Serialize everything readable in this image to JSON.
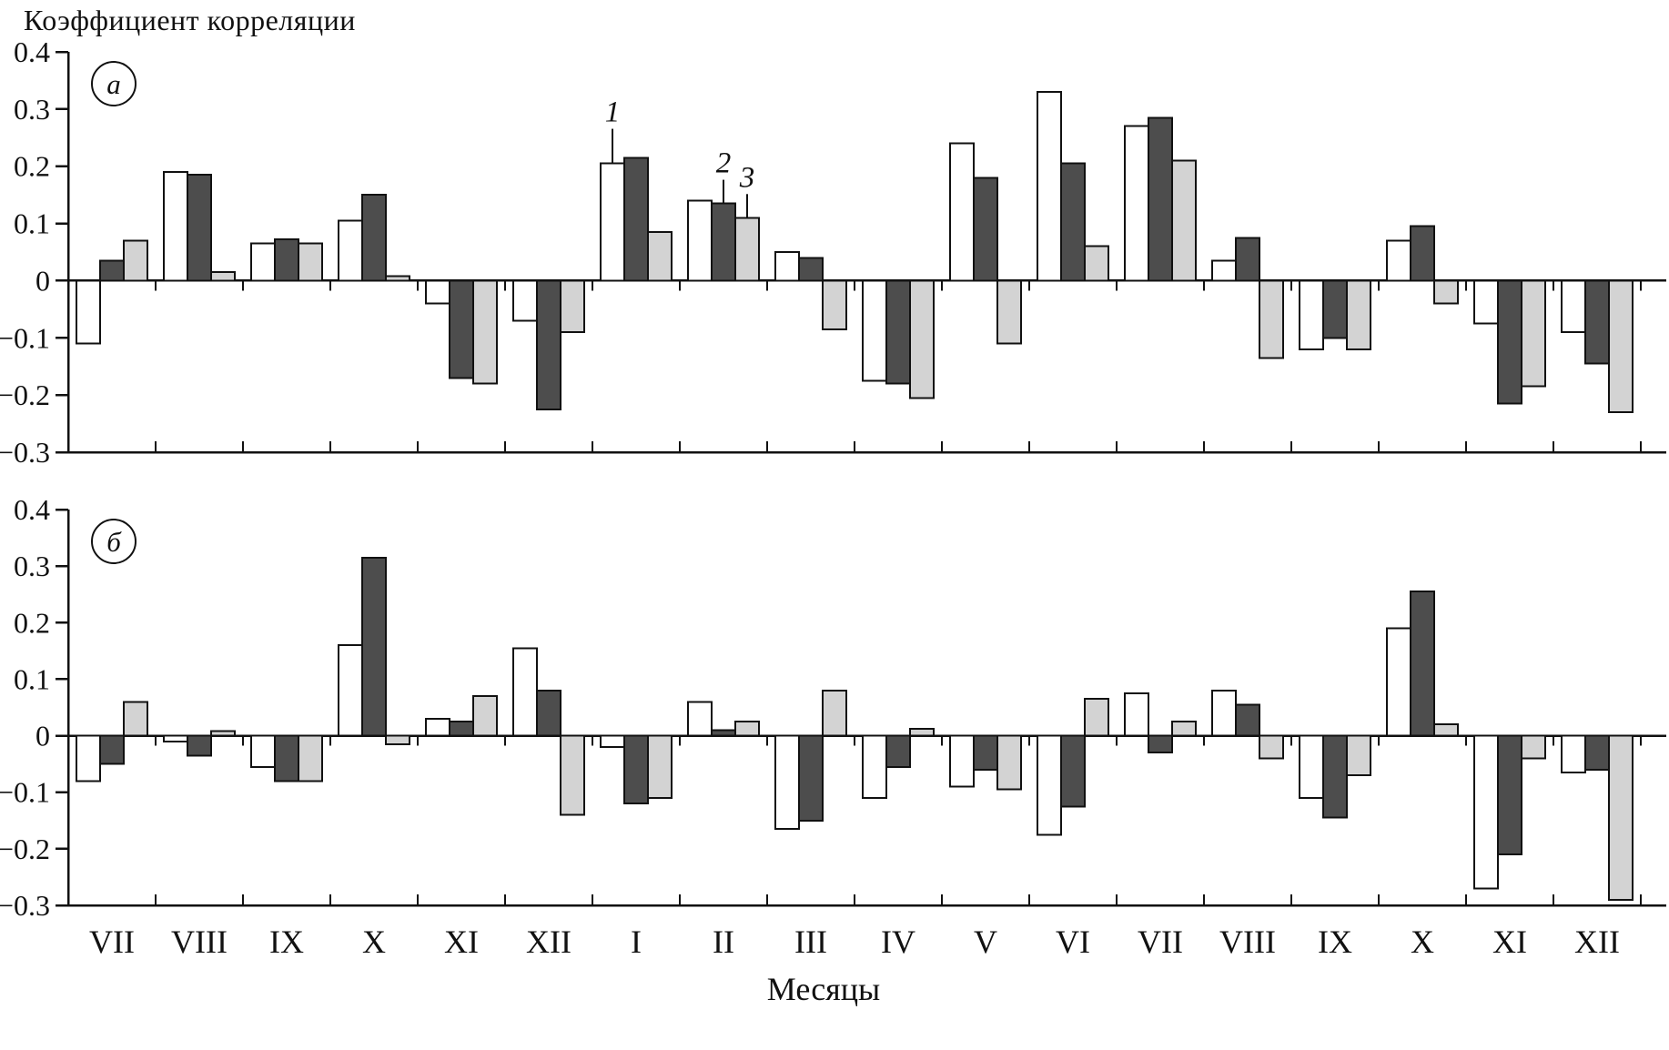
{
  "title": "Коэффициент корреляции",
  "xlabel": "Месяцы",
  "chart_data": {
    "type": "bar",
    "grid": false,
    "legend": "none (numbered callouts 1,2,3 identify series)",
    "categories": [
      "VII",
      "VIII",
      "IX",
      "X",
      "XI",
      "XII",
      "I",
      "II",
      "III",
      "IV",
      "V",
      "VI",
      "VII",
      "VIII",
      "IX",
      "X",
      "XI",
      "XII"
    ],
    "ylim": [
      -0.3,
      0.4
    ],
    "ytick_values": [
      0.4,
      0.3,
      0.2,
      0.1,
      0,
      -0.1,
      -0.2,
      -0.3
    ],
    "yticks": [
      "0.4",
      "0.3",
      "0.2",
      "0.1",
      "0",
      "−0.1",
      "−0.2",
      "−0.3"
    ],
    "ylabel": "Коэффициент корреляции",
    "xlabel": "Месяцы",
    "series_colors": {
      "1": "#ffffff",
      "2": "#4d4d4d",
      "3": "#d3d3d3"
    },
    "panels": [
      {
        "label": "а",
        "series": [
          {
            "name": "1",
            "values": [
              -0.11,
              0.19,
              0.065,
              0.105,
              -0.04,
              -0.07,
              0.205,
              0.14,
              0.05,
              -0.175,
              0.24,
              0.33,
              0.27,
              0.035,
              -0.12,
              0.07,
              -0.075,
              -0.09
            ]
          },
          {
            "name": "2",
            "values": [
              0.035,
              0.185,
              0.072,
              0.15,
              -0.17,
              -0.225,
              0.215,
              0.135,
              0.04,
              -0.18,
              0.18,
              0.205,
              0.285,
              0.075,
              -0.1,
              0.095,
              -0.215,
              -0.145
            ]
          },
          {
            "name": "3",
            "values": [
              0.07,
              0.015,
              0.065,
              0.008,
              -0.18,
              -0.09,
              0.085,
              0.11,
              -0.085,
              -0.205,
              -0.11,
              0.06,
              0.21,
              -0.135,
              -0.12,
              -0.04,
              -0.185,
              -0.23
            ]
          }
        ]
      },
      {
        "label": "б",
        "series": [
          {
            "name": "1",
            "values": [
              -0.08,
              -0.01,
              -0.055,
              0.16,
              0.03,
              0.155,
              -0.02,
              0.06,
              -0.165,
              -0.11,
              -0.09,
              -0.175,
              0.075,
              0.08,
              -0.11,
              0.19,
              -0.27,
              -0.065
            ]
          },
          {
            "name": "2",
            "values": [
              -0.05,
              -0.035,
              -0.08,
              0.315,
              0.025,
              0.08,
              -0.12,
              0.01,
              -0.15,
              -0.055,
              -0.06,
              -0.125,
              -0.03,
              0.055,
              -0.145,
              0.255,
              -0.21,
              -0.06
            ]
          },
          {
            "name": "3",
            "values": [
              0.06,
              0.008,
              -0.08,
              -0.015,
              0.07,
              -0.14,
              -0.11,
              0.025,
              0.08,
              0.012,
              -0.095,
              0.065,
              0.025,
              -0.04,
              -0.07,
              0.02,
              -0.04,
              -0.29
            ]
          }
        ]
      }
    ],
    "annotations": [
      {
        "text": "1",
        "panel": 0,
        "month_index": 6,
        "series_index": 0
      },
      {
        "text": "2",
        "panel": 0,
        "month_index": 7,
        "series_index": 1
      },
      {
        "text": "3",
        "panel": 0,
        "month_index": 7,
        "series_index": 2
      }
    ]
  }
}
